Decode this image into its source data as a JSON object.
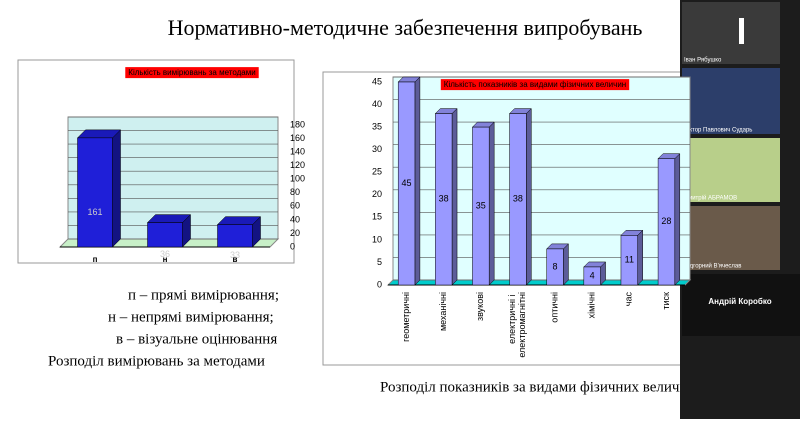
{
  "slide": {
    "title": "Нормативно-методичне забезпечення випробувань",
    "captions": [
      "п – прямі вимірювання;",
      "н – непрямі вимірювання;",
      "в – візуальне оцінювання",
      "Розподіл вимірювань за методами"
    ],
    "caption_right": "Розподіл показників за видами фізичних величин"
  },
  "chart_data": [
    {
      "type": "bar3d",
      "title": "Кількість вимірювань за методами",
      "categories": [
        "п",
        "н",
        "в"
      ],
      "values": [
        161,
        36,
        33
      ],
      "color": "#1f1fd8",
      "ylim": [
        0,
        180
      ],
      "yticks": [
        0,
        20,
        40,
        60,
        80,
        100,
        120,
        140,
        160,
        180
      ],
      "grid": true
    },
    {
      "type": "bar3d",
      "title": "Кількість показників за видами фізичних величин",
      "categories": [
        "геометричні",
        "механічні",
        "звукові",
        "електричні і електромагнітні",
        "оптичні",
        "хімічні",
        "час",
        "тиск"
      ],
      "values": [
        45,
        38,
        35,
        38,
        8,
        4,
        11,
        28
      ],
      "color": "#9999ff",
      "ylim": [
        0,
        45
      ],
      "yticks": [
        0,
        5,
        10,
        15,
        20,
        25,
        30,
        35,
        40,
        45
      ],
      "grid": true
    }
  ],
  "participants": [
    "Іван Рябушко",
    "Віктор Павлович Сударь",
    "Дмитрій АБРАМОВ",
    "Підгорний В'ячеслав",
    "Андрій Коробко"
  ]
}
